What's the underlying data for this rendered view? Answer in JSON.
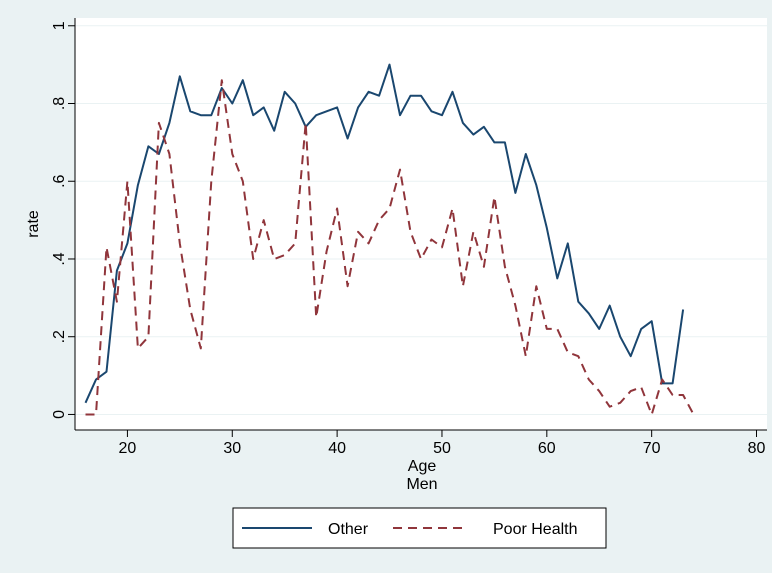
{
  "chart_data": {
    "type": "line",
    "xlabel": "Age",
    "subtitle": "Men",
    "ylabel": "rate",
    "xlim": [
      15,
      81
    ],
    "ylim": [
      -0.04,
      1.02
    ],
    "xticks": [
      "20",
      "30",
      "40",
      "50",
      "60",
      "70",
      "80"
    ],
    "yticks": [
      "0",
      ".2",
      ".4",
      ".6",
      ".8",
      "1"
    ],
    "grid": true,
    "legend_position": "bottom",
    "series": [
      {
        "name": "Other",
        "color": "#1a476f",
        "style": "solid",
        "x": [
          16,
          17,
          18,
          19,
          20,
          21,
          22,
          23,
          24,
          25,
          26,
          27,
          28,
          29,
          30,
          31,
          32,
          33,
          34,
          35,
          36,
          37,
          38,
          39,
          40,
          41,
          42,
          43,
          44,
          45,
          46,
          47,
          48,
          49,
          50,
          51,
          52,
          53,
          54,
          55,
          56,
          57,
          58,
          59,
          60,
          61,
          62,
          63,
          64,
          65,
          66,
          67,
          68,
          69,
          70,
          71,
          72,
          73
        ],
        "y": [
          0.03,
          0.09,
          0.11,
          0.37,
          0.44,
          0.59,
          0.69,
          0.67,
          0.75,
          0.87,
          0.78,
          0.77,
          0.77,
          0.84,
          0.8,
          0.86,
          0.77,
          0.79,
          0.73,
          0.83,
          0.8,
          0.74,
          0.77,
          0.78,
          0.79,
          0.71,
          0.79,
          0.83,
          0.82,
          0.9,
          0.77,
          0.82,
          0.82,
          0.78,
          0.77,
          0.83,
          0.75,
          0.72,
          0.74,
          0.7,
          0.7,
          0.57,
          0.67,
          0.59,
          0.48,
          0.35,
          0.44,
          0.29,
          0.26,
          0.22,
          0.28,
          0.2,
          0.15,
          0.22,
          0.24,
          0.08,
          0.08,
          0.27
        ]
      },
      {
        "name": "Poor Health",
        "color": "#90353b",
        "style": "dashed",
        "x": [
          16,
          17,
          18,
          19,
          20,
          21,
          22,
          23,
          24,
          25,
          26,
          27,
          28,
          29,
          30,
          31,
          32,
          33,
          34,
          35,
          36,
          37,
          38,
          39,
          40,
          41,
          42,
          43,
          44,
          45,
          46,
          47,
          48,
          49,
          50,
          51,
          52,
          53,
          54,
          55,
          56,
          57,
          58,
          59,
          60,
          61,
          62,
          63,
          64,
          65,
          66,
          67,
          68,
          69,
          70,
          71,
          72,
          73,
          74
        ],
        "y": [
          0.0,
          0.0,
          0.43,
          0.29,
          0.6,
          0.17,
          0.2,
          0.75,
          0.67,
          0.44,
          0.27,
          0.17,
          0.6,
          0.86,
          0.67,
          0.6,
          0.4,
          0.5,
          0.4,
          0.41,
          0.44,
          0.75,
          0.25,
          0.42,
          0.53,
          0.33,
          0.47,
          0.44,
          0.5,
          0.53,
          0.63,
          0.47,
          0.4,
          0.45,
          0.43,
          0.53,
          0.33,
          0.47,
          0.38,
          0.56,
          0.38,
          0.28,
          0.15,
          0.33,
          0.22,
          0.22,
          0.16,
          0.15,
          0.09,
          0.06,
          0.02,
          0.03,
          0.06,
          0.07,
          0.0,
          0.09,
          0.05,
          0.05,
          0.0
        ]
      }
    ]
  }
}
